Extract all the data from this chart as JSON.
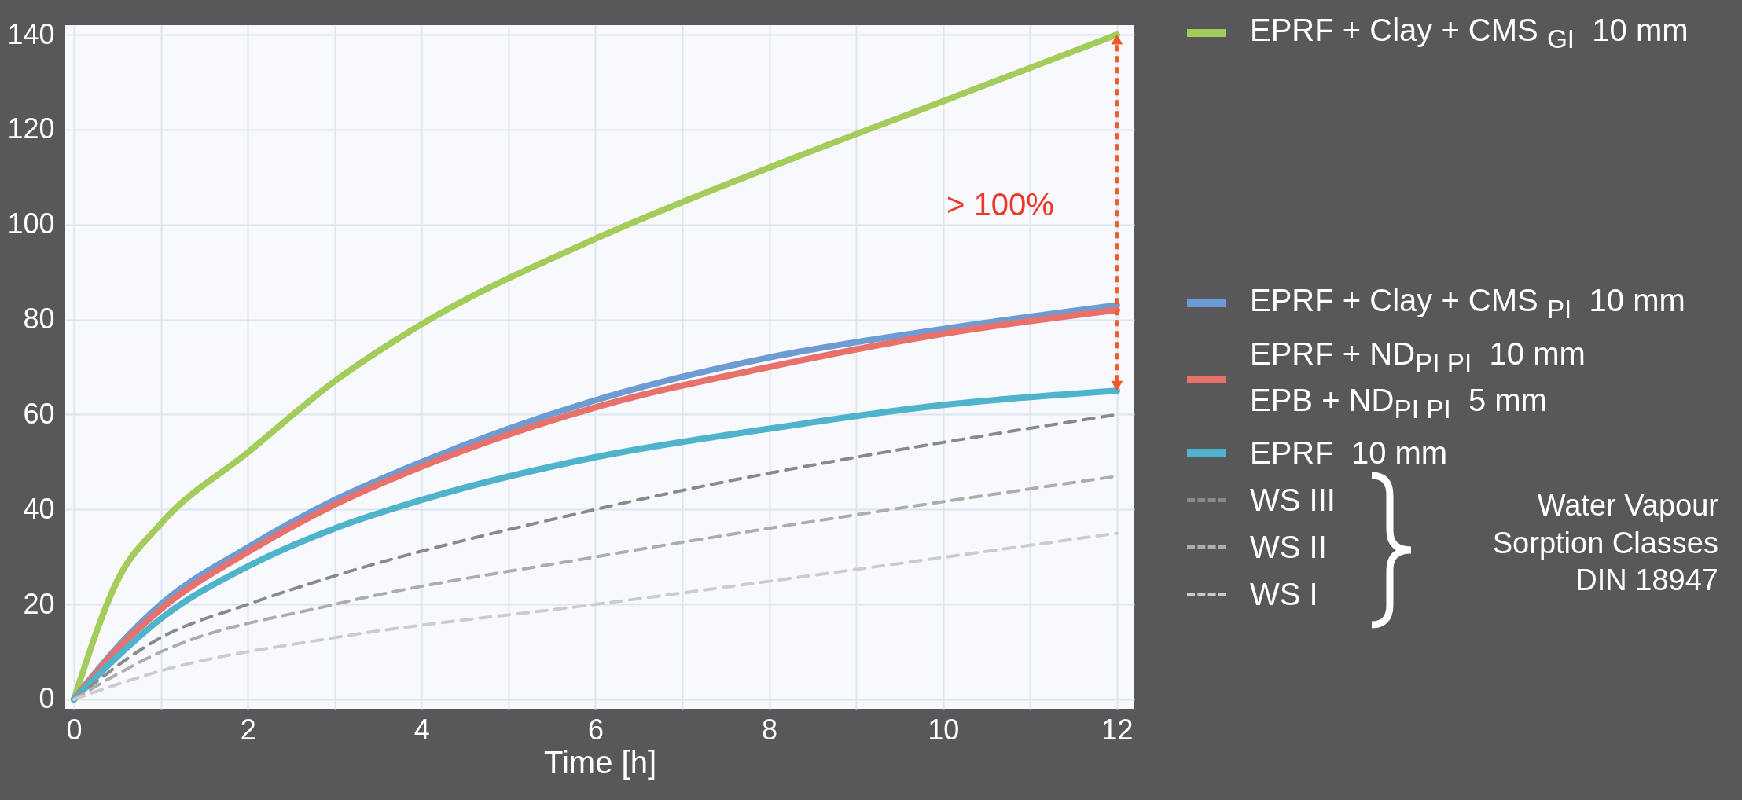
{
  "chart_data": {
    "type": "line",
    "xlabel": "Time [h]",
    "xlim": [
      -0.1,
      12.2
    ],
    "ylim": [
      -2,
      142
    ],
    "xticks": [
      0,
      {
        "value": 1,
        "label": null
      },
      2,
      {
        "value": 3,
        "label": null
      },
      4,
      {
        "value": 5,
        "label": null
      },
      6,
      {
        "value": 7,
        "label": null
      },
      8,
      {
        "value": 9,
        "label": null
      },
      10,
      {
        "value": 11,
        "label": null
      },
      12
    ],
    "yticks": [
      0,
      20,
      40,
      60,
      80,
      100,
      120,
      140
    ],
    "grid": true,
    "legend": "right",
    "line_style": "solid",
    "x": [
      0,
      0.5,
      1,
      2,
      3,
      4,
      6,
      8,
      10,
      12
    ],
    "series": [
      {
        "name": "EPRF + Clay + CMS $_{GI}$  10 mm",
        "color": "#a3cc5a",
        "values": [
          0,
          25,
          37,
          52,
          67,
          79,
          97,
          112,
          126,
          140
        ]
      },
      {
        "name": "EPRF + Clay + CMS $_{PI}$  10 mm",
        "color": "#6d9bd3",
        "values": [
          0,
          11,
          20,
          32,
          42,
          50,
          63,
          72,
          78,
          83
        ]
      },
      {
        "name": "EPRF + ND$_{PI PI}$  10 mm\nEPB + ND$_{PI PI}$  5 mm",
        "color": "#e8716c",
        "values": [
          0,
          10.5,
          19,
          31,
          41,
          49,
          61.5,
          70,
          77,
          82
        ]
      },
      {
        "name": "EPRF  10 mm",
        "color": "#4fb3cc",
        "values": [
          0,
          9,
          17,
          28,
          36,
          42,
          51,
          57,
          62,
          65
        ]
      },
      {
        "name": "WS III",
        "color": "#8a8a8a",
        "line_style": "dashed",
        "x": [
          0,
          1,
          2,
          3,
          6,
          12
        ],
        "values": [
          0,
          13,
          20,
          26,
          40,
          60
        ]
      },
      {
        "name": "WS II",
        "color": "#adadad",
        "line_style": "dashed",
        "x": [
          0,
          1,
          3,
          6,
          12
        ],
        "values": [
          0,
          10,
          20,
          30,
          47
        ]
      },
      {
        "name": "WS I",
        "color": "#cccccc",
        "line_style": "dashed",
        "x": [
          0,
          1,
          3,
          6,
          12
        ],
        "values": [
          0,
          6,
          13,
          20,
          35
        ]
      }
    ],
    "annotations": [
      "> 100%",
      "Water Vapour Sorption Classes DIN 18947"
    ]
  }
}
